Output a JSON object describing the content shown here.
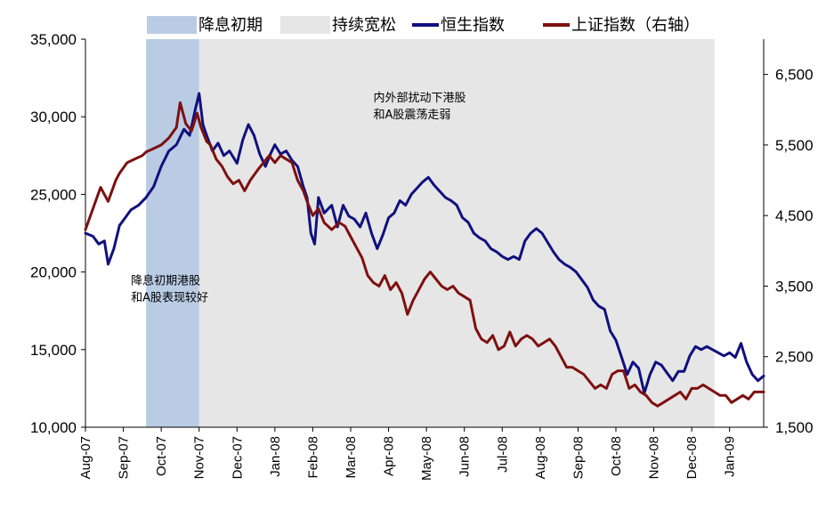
{
  "chart_data": {
    "type": "line",
    "left_axis": {
      "ylim": [
        10000,
        35000
      ],
      "ticks": [
        "10,000",
        "15,000",
        "20,000",
        "25,000",
        "30,000",
        "35,000"
      ],
      "tick_values": [
        10000,
        15000,
        20000,
        25000,
        30000,
        35000
      ]
    },
    "right_axis": {
      "ylim": [
        1500,
        7000
      ],
      "ticks": [
        "1,500",
        "2,500",
        "3,500",
        "4,500",
        "5,500",
        "6,500"
      ],
      "tick_values": [
        1500,
        2500,
        3500,
        4500,
        5500,
        6500
      ]
    },
    "x_categories": [
      "Aug-07",
      "Sep-07",
      "Oct-07",
      "Nov-07",
      "Dec-07",
      "Jan-08",
      "Feb-08",
      "Mar-08",
      "Apr-08",
      "May-08",
      "Jun-08",
      "Jul-08",
      "Aug-08",
      "Sep-08",
      "Oct-08",
      "Nov-08",
      "Dec-08",
      "Jan-09"
    ],
    "x_domain": [
      0,
      17.9
    ],
    "legend": [
      {
        "label": "降息初期",
        "kind": "patch",
        "color": "#b9cce4"
      },
      {
        "label": "持续宽松",
        "kind": "patch",
        "color": "#e6e6e6"
      },
      {
        "label": "恒生指数",
        "kind": "line",
        "color": "#10107e"
      },
      {
        "label": "上证指数（右轴）",
        "kind": "line",
        "color": "#7e1010"
      }
    ],
    "shaded_regions": [
      {
        "label": "降息初期",
        "x_start": 1.6,
        "x_end": 3.0,
        "color": "#b9cce4"
      },
      {
        "label": "持续宽松",
        "x_start": 3.0,
        "x_end": 16.6,
        "color": "#e6e6e6"
      }
    ],
    "annotations": [
      {
        "lines": [
          "降息初期港股",
          "和A股表现较好"
        ],
        "x": 1.2,
        "y": 19200
      },
      {
        "lines": [
          "内外部扰动下港股",
          "和A股震荡走弱"
        ],
        "x": 7.6,
        "y": 31000
      }
    ],
    "series": [
      {
        "name": "恒生指数",
        "axis": "left",
        "color": "#10107e",
        "points": [
          [
            0.0,
            22500
          ],
          [
            0.2,
            22300
          ],
          [
            0.35,
            21800
          ],
          [
            0.5,
            22000
          ],
          [
            0.6,
            20500
          ],
          [
            0.75,
            21500
          ],
          [
            0.9,
            23000
          ],
          [
            1.05,
            23500
          ],
          [
            1.2,
            24000
          ],
          [
            1.4,
            24300
          ],
          [
            1.6,
            24800
          ],
          [
            1.8,
            25500
          ],
          [
            2.0,
            26800
          ],
          [
            2.2,
            27800
          ],
          [
            2.4,
            28200
          ],
          [
            2.6,
            29200
          ],
          [
            2.75,
            28800
          ],
          [
            2.9,
            30500
          ],
          [
            3.0,
            31500
          ],
          [
            3.1,
            29500
          ],
          [
            3.2,
            28800
          ],
          [
            3.35,
            27800
          ],
          [
            3.5,
            28300
          ],
          [
            3.65,
            27500
          ],
          [
            3.8,
            27800
          ],
          [
            4.0,
            27000
          ],
          [
            4.15,
            28500
          ],
          [
            4.3,
            29500
          ],
          [
            4.45,
            28800
          ],
          [
            4.6,
            27600
          ],
          [
            4.75,
            26800
          ],
          [
            4.9,
            27700
          ],
          [
            5.0,
            28200
          ],
          [
            5.15,
            27600
          ],
          [
            5.3,
            27800
          ],
          [
            5.45,
            27200
          ],
          [
            5.6,
            26800
          ],
          [
            5.75,
            25500
          ],
          [
            5.85,
            24800
          ],
          [
            5.95,
            22500
          ],
          [
            6.05,
            21800
          ],
          [
            6.15,
            24800
          ],
          [
            6.3,
            23800
          ],
          [
            6.5,
            24300
          ],
          [
            6.65,
            22900
          ],
          [
            6.8,
            24300
          ],
          [
            6.95,
            23600
          ],
          [
            7.1,
            23400
          ],
          [
            7.25,
            22900
          ],
          [
            7.4,
            23800
          ],
          [
            7.55,
            22500
          ],
          [
            7.7,
            21500
          ],
          [
            7.85,
            22400
          ],
          [
            8.0,
            23500
          ],
          [
            8.15,
            23800
          ],
          [
            8.3,
            24600
          ],
          [
            8.45,
            24300
          ],
          [
            8.6,
            25000
          ],
          [
            8.75,
            25400
          ],
          [
            8.9,
            25800
          ],
          [
            9.05,
            26100
          ],
          [
            9.2,
            25600
          ],
          [
            9.35,
            25200
          ],
          [
            9.5,
            24800
          ],
          [
            9.65,
            24600
          ],
          [
            9.8,
            24300
          ],
          [
            9.95,
            23500
          ],
          [
            10.1,
            23200
          ],
          [
            10.25,
            22500
          ],
          [
            10.4,
            22200
          ],
          [
            10.55,
            22000
          ],
          [
            10.7,
            21500
          ],
          [
            10.85,
            21300
          ],
          [
            11.0,
            21000
          ],
          [
            11.15,
            20800
          ],
          [
            11.3,
            21000
          ],
          [
            11.45,
            20800
          ],
          [
            11.6,
            22000
          ],
          [
            11.75,
            22500
          ],
          [
            11.9,
            22800
          ],
          [
            12.05,
            22500
          ],
          [
            12.2,
            21900
          ],
          [
            12.35,
            21300
          ],
          [
            12.5,
            20800
          ],
          [
            12.65,
            20500
          ],
          [
            12.8,
            20300
          ],
          [
            12.95,
            20000
          ],
          [
            13.1,
            19500
          ],
          [
            13.25,
            19000
          ],
          [
            13.4,
            18200
          ],
          [
            13.55,
            17800
          ],
          [
            13.7,
            17600
          ],
          [
            13.85,
            16200
          ],
          [
            14.0,
            15600
          ],
          [
            14.15,
            14500
          ],
          [
            14.3,
            13400
          ],
          [
            14.45,
            14200
          ],
          [
            14.6,
            13800
          ],
          [
            14.75,
            12200
          ],
          [
            14.9,
            13400
          ],
          [
            15.05,
            14200
          ],
          [
            15.2,
            14000
          ],
          [
            15.35,
            13500
          ],
          [
            15.5,
            13000
          ],
          [
            15.65,
            13600
          ],
          [
            15.8,
            13600
          ],
          [
            15.95,
            14600
          ],
          [
            16.1,
            15200
          ],
          [
            16.25,
            15000
          ],
          [
            16.4,
            15200
          ],
          [
            16.55,
            15000
          ],
          [
            16.7,
            14800
          ],
          [
            16.85,
            14600
          ],
          [
            17.0,
            14800
          ],
          [
            17.15,
            14500
          ],
          [
            17.3,
            15400
          ],
          [
            17.45,
            14200
          ],
          [
            17.6,
            13400
          ],
          [
            17.75,
            13000
          ],
          [
            17.9,
            13300
          ]
        ]
      },
      {
        "name": "上证指数（右轴）",
        "axis": "right",
        "color": "#7e1010",
        "points": [
          [
            0.0,
            4300
          ],
          [
            0.2,
            4600
          ],
          [
            0.4,
            4900
          ],
          [
            0.6,
            4700
          ],
          [
            0.8,
            5000
          ],
          [
            0.9,
            5100
          ],
          [
            1.1,
            5250
          ],
          [
            1.3,
            5300
          ],
          [
            1.5,
            5350
          ],
          [
            1.6,
            5400
          ],
          [
            1.8,
            5450
          ],
          [
            2.0,
            5500
          ],
          [
            2.2,
            5600
          ],
          [
            2.4,
            5750
          ],
          [
            2.5,
            6100
          ],
          [
            2.65,
            5800
          ],
          [
            2.8,
            5700
          ],
          [
            2.95,
            5950
          ],
          [
            3.05,
            5750
          ],
          [
            3.2,
            5550
          ],
          [
            3.3,
            5500
          ],
          [
            3.45,
            5300
          ],
          [
            3.6,
            5200
          ],
          [
            3.75,
            5050
          ],
          [
            3.9,
            4950
          ],
          [
            4.05,
            5000
          ],
          [
            4.2,
            4850
          ],
          [
            4.35,
            5000
          ],
          [
            4.55,
            5150
          ],
          [
            4.7,
            5250
          ],
          [
            4.85,
            5350
          ],
          [
            5.0,
            5250
          ],
          [
            5.15,
            5350
          ],
          [
            5.3,
            5300
          ],
          [
            5.45,
            5250
          ],
          [
            5.6,
            5000
          ],
          [
            5.75,
            4850
          ],
          [
            5.85,
            4700
          ],
          [
            6.0,
            4500
          ],
          [
            6.15,
            4600
          ],
          [
            6.3,
            4400
          ],
          [
            6.5,
            4300
          ],
          [
            6.7,
            4400
          ],
          [
            6.85,
            4350
          ],
          [
            7.0,
            4200
          ],
          [
            7.15,
            4050
          ],
          [
            7.3,
            3900
          ],
          [
            7.45,
            3650
          ],
          [
            7.6,
            3550
          ],
          [
            7.75,
            3500
          ],
          [
            7.9,
            3650
          ],
          [
            8.05,
            3450
          ],
          [
            8.2,
            3550
          ],
          [
            8.35,
            3400
          ],
          [
            8.5,
            3100
          ],
          [
            8.65,
            3300
          ],
          [
            8.8,
            3450
          ],
          [
            8.95,
            3600
          ],
          [
            9.1,
            3700
          ],
          [
            9.25,
            3600
          ],
          [
            9.4,
            3500
          ],
          [
            9.55,
            3450
          ],
          [
            9.7,
            3500
          ],
          [
            9.85,
            3400
          ],
          [
            10.0,
            3350
          ],
          [
            10.15,
            3300
          ],
          [
            10.3,
            2900
          ],
          [
            10.45,
            2750
          ],
          [
            10.6,
            2700
          ],
          [
            10.75,
            2800
          ],
          [
            10.9,
            2600
          ],
          [
            11.05,
            2650
          ],
          [
            11.2,
            2850
          ],
          [
            11.35,
            2650
          ],
          [
            11.5,
            2750
          ],
          [
            11.65,
            2800
          ],
          [
            11.8,
            2750
          ],
          [
            11.95,
            2650
          ],
          [
            12.1,
            2700
          ],
          [
            12.25,
            2750
          ],
          [
            12.4,
            2650
          ],
          [
            12.55,
            2500
          ],
          [
            12.7,
            2350
          ],
          [
            12.85,
            2350
          ],
          [
            13.0,
            2300
          ],
          [
            13.15,
            2250
          ],
          [
            13.3,
            2150
          ],
          [
            13.45,
            2050
          ],
          [
            13.6,
            2100
          ],
          [
            13.75,
            2050
          ],
          [
            13.9,
            2250
          ],
          [
            14.05,
            2300
          ],
          [
            14.2,
            2300
          ],
          [
            14.35,
            2050
          ],
          [
            14.5,
            2100
          ],
          [
            14.65,
            2000
          ],
          [
            14.8,
            1950
          ],
          [
            14.95,
            1850
          ],
          [
            15.1,
            1800
          ],
          [
            15.25,
            1850
          ],
          [
            15.4,
            1900
          ],
          [
            15.55,
            1950
          ],
          [
            15.7,
            2000
          ],
          [
            15.85,
            1900
          ],
          [
            16.0,
            2050
          ],
          [
            16.15,
            2050
          ],
          [
            16.3,
            2100
          ],
          [
            16.45,
            2050
          ],
          [
            16.6,
            2000
          ],
          [
            16.75,
            1950
          ],
          [
            16.9,
            1950
          ],
          [
            17.05,
            1850
          ],
          [
            17.2,
            1900
          ],
          [
            17.35,
            1950
          ],
          [
            17.5,
            1900
          ],
          [
            17.65,
            2000
          ],
          [
            17.8,
            2000
          ],
          [
            17.9,
            2000
          ]
        ]
      }
    ]
  }
}
